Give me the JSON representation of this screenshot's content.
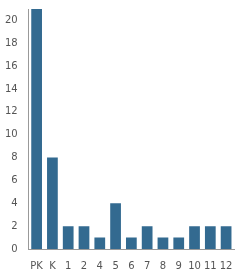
{
  "chart_data": {
    "type": "bar",
    "categories": [
      "PK",
      "K",
      "1",
      "2",
      "4",
      "5",
      "6",
      "7",
      "8",
      "9",
      "10",
      "11",
      "12"
    ],
    "values": [
      21,
      8,
      2,
      2,
      1,
      4,
      1,
      2,
      1,
      1,
      2,
      2,
      2
    ],
    "color": "#336a90",
    "ylim": [
      0,
      21
    ],
    "yticks": [
      0,
      2,
      4,
      6,
      8,
      10,
      12,
      14,
      16,
      18,
      20
    ],
    "grid": false
  }
}
